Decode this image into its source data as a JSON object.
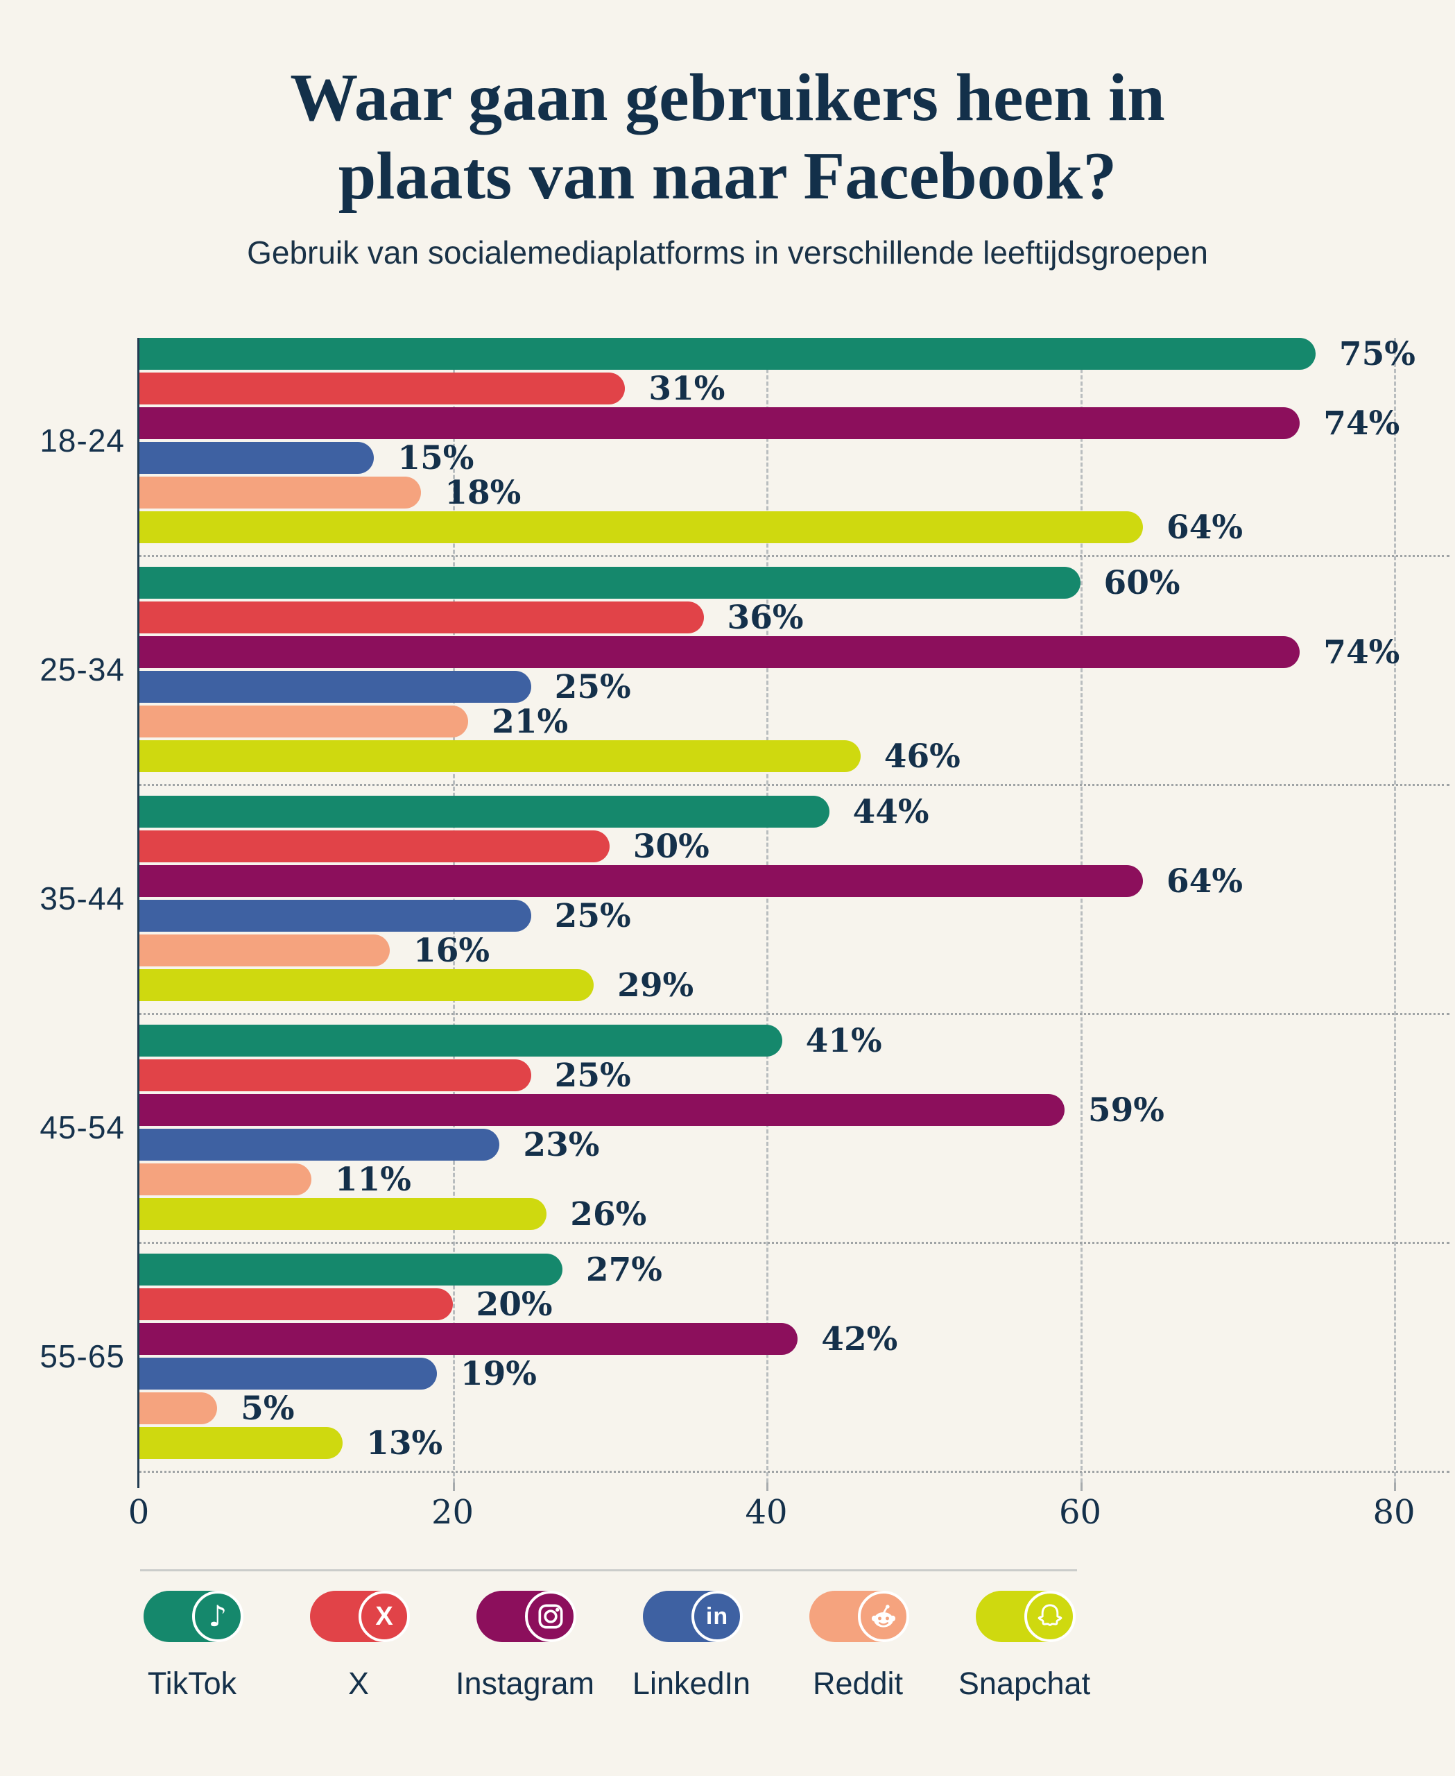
{
  "title": {
    "line1": "Waar gaan gebruikers heen in",
    "line2": "plaats van naar Facebook?"
  },
  "subtitle": "Gebruik van socialemediaplatforms in verschillende leeftijdsgroepen",
  "chart_data": {
    "type": "bar",
    "orientation": "horizontal",
    "title": "Waar gaan gebruikers heen in plaats van naar Facebook?",
    "subtitle": "Gebruik van socialemediaplatforms in verschillende leeftijdsgroepen",
    "categories": [
      "18-24",
      "25-34",
      "35-44",
      "45-54",
      "55-65"
    ],
    "series": [
      {
        "name": "TikTok",
        "color": "#15886C",
        "values": [
          75,
          60,
          44,
          41,
          27
        ]
      },
      {
        "name": "X",
        "color": "#E14348",
        "values": [
          31,
          36,
          30,
          25,
          20
        ]
      },
      {
        "name": "Instagram",
        "color": "#8C0F5C",
        "values": [
          74,
          74,
          64,
          59,
          42
        ]
      },
      {
        "name": "LinkedIn",
        "color": "#3E61A2",
        "values": [
          15,
          25,
          25,
          23,
          19
        ]
      },
      {
        "name": "Reddit",
        "color": "#F5A37E",
        "values": [
          18,
          21,
          16,
          11,
          5
        ]
      },
      {
        "name": "Snapchat",
        "color": "#CFD90F",
        "values": [
          64,
          46,
          29,
          26,
          13
        ]
      }
    ],
    "value_suffix": "%",
    "xlim": [
      0,
      80
    ],
    "x_ticks": [
      0,
      20,
      40,
      60,
      80
    ],
    "grid": "vertical-dashed",
    "legend_position": "bottom"
  },
  "legend": {
    "items": [
      {
        "label": "TikTok",
        "icon": "tiktok-icon"
      },
      {
        "label": "X",
        "icon": "x-icon"
      },
      {
        "label": "Instagram",
        "icon": "instagram-icon"
      },
      {
        "label": "LinkedIn",
        "icon": "linkedin-icon"
      },
      {
        "label": "Reddit",
        "icon": "reddit-icon"
      },
      {
        "label": "Snapchat",
        "icon": "snapchat-icon"
      }
    ]
  },
  "colors": {
    "background": "#F7F4ED",
    "text": "#14304A",
    "axis": "#223C52",
    "gridline": "#B9BDBF",
    "separator": "#9FA3A5",
    "divider": "#CACCCA"
  }
}
